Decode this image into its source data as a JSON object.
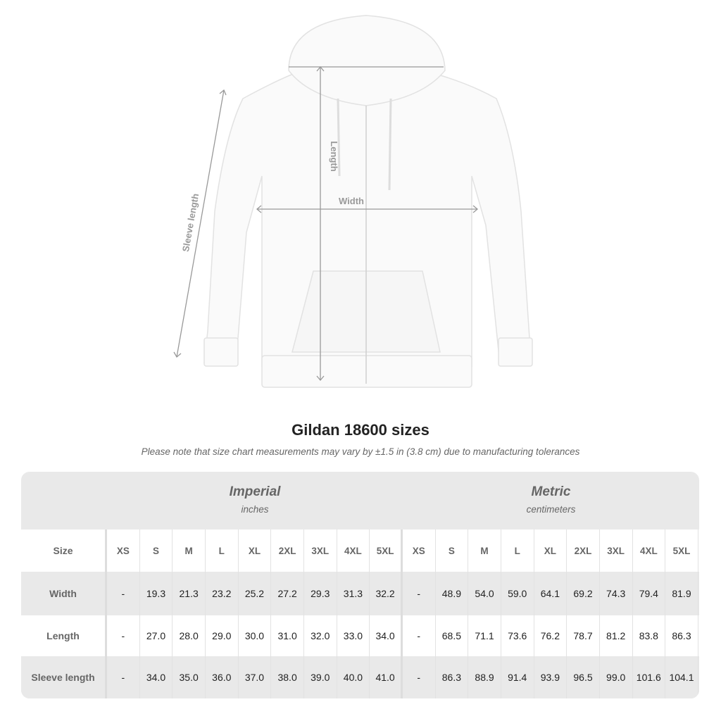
{
  "diagram": {
    "labels": {
      "length": "Length",
      "width": "Width",
      "sleeve": "Sleeve length"
    }
  },
  "title": "Gildan 18600 sizes",
  "note": "Please note that size chart measurements may vary by ±1.5 in (3.8 cm) due to manufacturing tolerances",
  "table": {
    "imperial": {
      "title": "Imperial",
      "unit": "inches"
    },
    "metric": {
      "title": "Metric",
      "unit": "centimeters"
    },
    "size_label": "Size",
    "sizes": [
      "XS",
      "S",
      "M",
      "L",
      "XL",
      "2XL",
      "3XL",
      "4XL",
      "5XL"
    ],
    "rows": [
      {
        "label": "Width",
        "imperial": [
          "-",
          "19.3",
          "21.3",
          "23.2",
          "25.2",
          "27.2",
          "29.3",
          "31.3",
          "32.2"
        ],
        "metric": [
          "-",
          "48.9",
          "54.0",
          "59.0",
          "64.1",
          "69.2",
          "74.3",
          "79.4",
          "81.9"
        ]
      },
      {
        "label": "Length",
        "imperial": [
          "-",
          "27.0",
          "28.0",
          "29.0",
          "30.0",
          "31.0",
          "32.0",
          "33.0",
          "34.0"
        ],
        "metric": [
          "-",
          "68.5",
          "71.1",
          "73.6",
          "76.2",
          "78.7",
          "81.2",
          "83.8",
          "86.3"
        ]
      },
      {
        "label": "Sleeve length",
        "imperial": [
          "-",
          "34.0",
          "35.0",
          "36.0",
          "37.0",
          "38.0",
          "39.0",
          "40.0",
          "41.0"
        ],
        "metric": [
          "-",
          "86.3",
          "88.9",
          "91.4",
          "93.9",
          "96.5",
          "99.0",
          "101.6",
          "104.1"
        ]
      }
    ]
  }
}
